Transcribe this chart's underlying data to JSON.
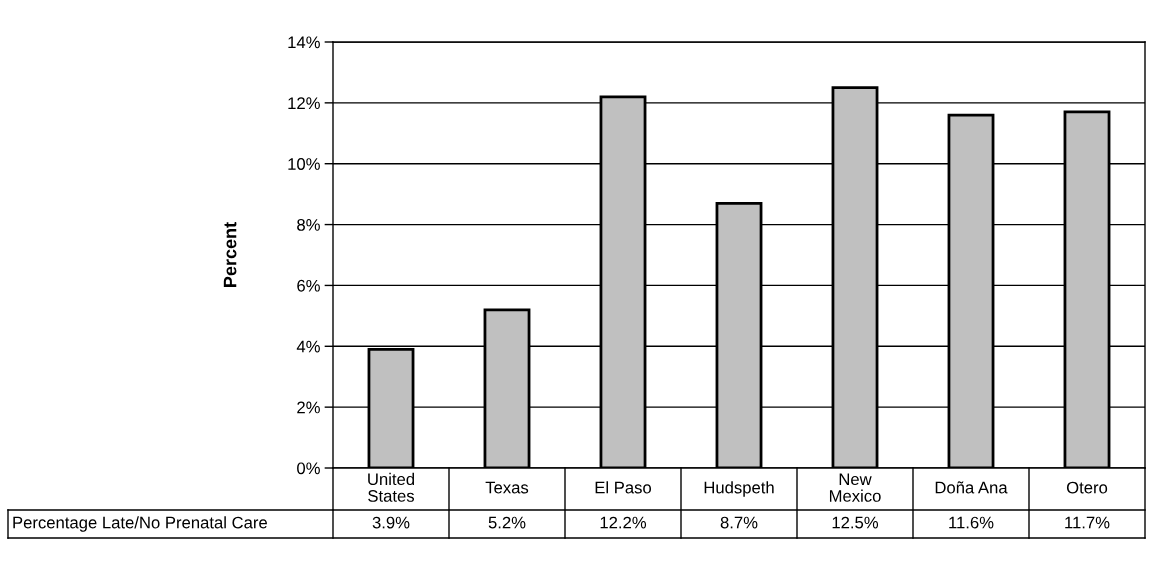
{
  "chart_data": {
    "type": "bar",
    "ylabel": "Percent",
    "categories": [
      "United\nStates",
      "Texas",
      "El Paso",
      "Hudspeth",
      "New\nMexico",
      "Doña Ana",
      "Otero"
    ],
    "series": [
      {
        "name": "Percentage Late/No Prenatal Care",
        "color": "#c0c0c0",
        "values": [
          3.9,
          5.2,
          12.2,
          8.7,
          12.5,
          11.6,
          11.7
        ],
        "value_labels": [
          "3.9%",
          "5.2%",
          "12.2%",
          "8.7%",
          "12.5%",
          "11.6%",
          "11.7%"
        ]
      }
    ],
    "ylim": [
      0,
      14
    ],
    "yticks": [
      {
        "value": 0,
        "label": "0%"
      },
      {
        "value": 2,
        "label": "2%"
      },
      {
        "value": 4,
        "label": "4%"
      },
      {
        "value": 6,
        "label": "6%"
      },
      {
        "value": 8,
        "label": "8%"
      },
      {
        "value": 10,
        "label": "10%"
      },
      {
        "value": 12,
        "label": "12%"
      },
      {
        "value": 14,
        "label": "14%"
      }
    ],
    "grid": "y"
  }
}
